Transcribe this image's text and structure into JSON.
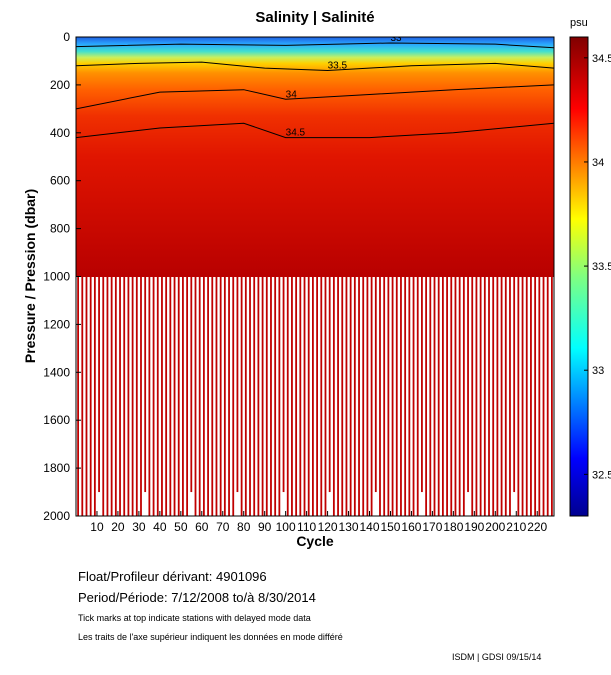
{
  "chart_data": {
    "type": "heatmap",
    "title": "Salinity | Salinité",
    "xlabel": "Cycle",
    "ylabel": "Pressure / Pression (dbar)",
    "x_range": [
      0,
      228
    ],
    "y_range": [
      0,
      2000
    ],
    "y_reversed": true,
    "x_ticks": [
      10,
      20,
      30,
      40,
      50,
      60,
      70,
      80,
      90,
      100,
      110,
      120,
      130,
      140,
      150,
      160,
      170,
      180,
      190,
      200,
      210,
      220
    ],
    "x_tick_labels": [
      "10",
      "20",
      "30",
      "40",
      "50",
      "60",
      "70",
      "80",
      "90",
      "100",
      "110",
      "120",
      "130",
      "140",
      "150",
      "160",
      "170",
      "180",
      "190",
      "200",
      "210",
      "220"
    ],
    "y_ticks": [
      0,
      200,
      400,
      600,
      800,
      1000,
      1200,
      1400,
      1600,
      1800,
      2000
    ],
    "y_tick_labels": [
      "0",
      "200",
      "400",
      "600",
      "800",
      "1000",
      "1200",
      "1400",
      "1600",
      "1800",
      "2000"
    ],
    "colorbar": {
      "unit": "psu",
      "range": [
        32.3,
        34.6
      ],
      "ticks": [
        32.5,
        33,
        33.5,
        34,
        34.5
      ],
      "tick_labels": [
        "32.5",
        "33",
        "33.5",
        "34",
        "34.5"
      ]
    },
    "contour_levels": [
      33,
      33.5,
      34,
      34.5
    ],
    "contour_label_texts": [
      "33",
      "33.5",
      "34",
      "34.5"
    ],
    "profile_depth_note": "profiles below 1000 dbar are sparse (shown as vertical columns)",
    "profile_structure": [
      {
        "pressure": 0,
        "salinity": 32.6
      },
      {
        "pressure": 50,
        "salinity": 32.9
      },
      {
        "pressure": 100,
        "salinity": 33.3
      },
      {
        "pressure": 150,
        "salinity": 33.6
      },
      {
        "pressure": 200,
        "salinity": 33.85
      },
      {
        "pressure": 300,
        "salinity": 34.1
      },
      {
        "pressure": 400,
        "salinity": 34.3
      },
      {
        "pressure": 600,
        "salinity": 34.42
      },
      {
        "pressure": 1000,
        "salinity": 34.5
      },
      {
        "pressure": 2000,
        "salinity": 34.6
      }
    ],
    "contour_depths": [
      {
        "level": 33,
        "pressure_at_cycle": [
          [
            0,
            40
          ],
          [
            50,
            30
          ],
          [
            100,
            35
          ],
          [
            150,
            25
          ],
          [
            200,
            30
          ],
          [
            228,
            45
          ]
        ]
      },
      {
        "level": 33.5,
        "pressure_at_cycle": [
          [
            0,
            120
          ],
          [
            30,
            110
          ],
          [
            60,
            105
          ],
          [
            90,
            130
          ],
          [
            120,
            140
          ],
          [
            160,
            120
          ],
          [
            200,
            110
          ],
          [
            228,
            130
          ]
        ]
      },
      {
        "level": 34,
        "pressure_at_cycle": [
          [
            0,
            300
          ],
          [
            40,
            230
          ],
          [
            80,
            220
          ],
          [
            100,
            260
          ],
          [
            140,
            240
          ],
          [
            180,
            220
          ],
          [
            228,
            200
          ]
        ]
      },
      {
        "level": 34.5,
        "pressure_at_cycle": [
          [
            0,
            420
          ],
          [
            40,
            380
          ],
          [
            80,
            360
          ],
          [
            100,
            420
          ],
          [
            140,
            420
          ],
          [
            180,
            400
          ],
          [
            228,
            360
          ]
        ]
      }
    ]
  },
  "info": {
    "float_label": "Float/Profileur dérivant:",
    "float_value": "4901096",
    "period_label": "Period/Période:",
    "period_value": "7/12/2008  to/à  8/30/2014",
    "note_en": "Tick marks at top indicate stations with delayed mode data",
    "note_fr": "Les traits de l'axe supérieur indiquent les données en mode différé",
    "stamp": "ISDM | GDSI  09/15/14"
  }
}
